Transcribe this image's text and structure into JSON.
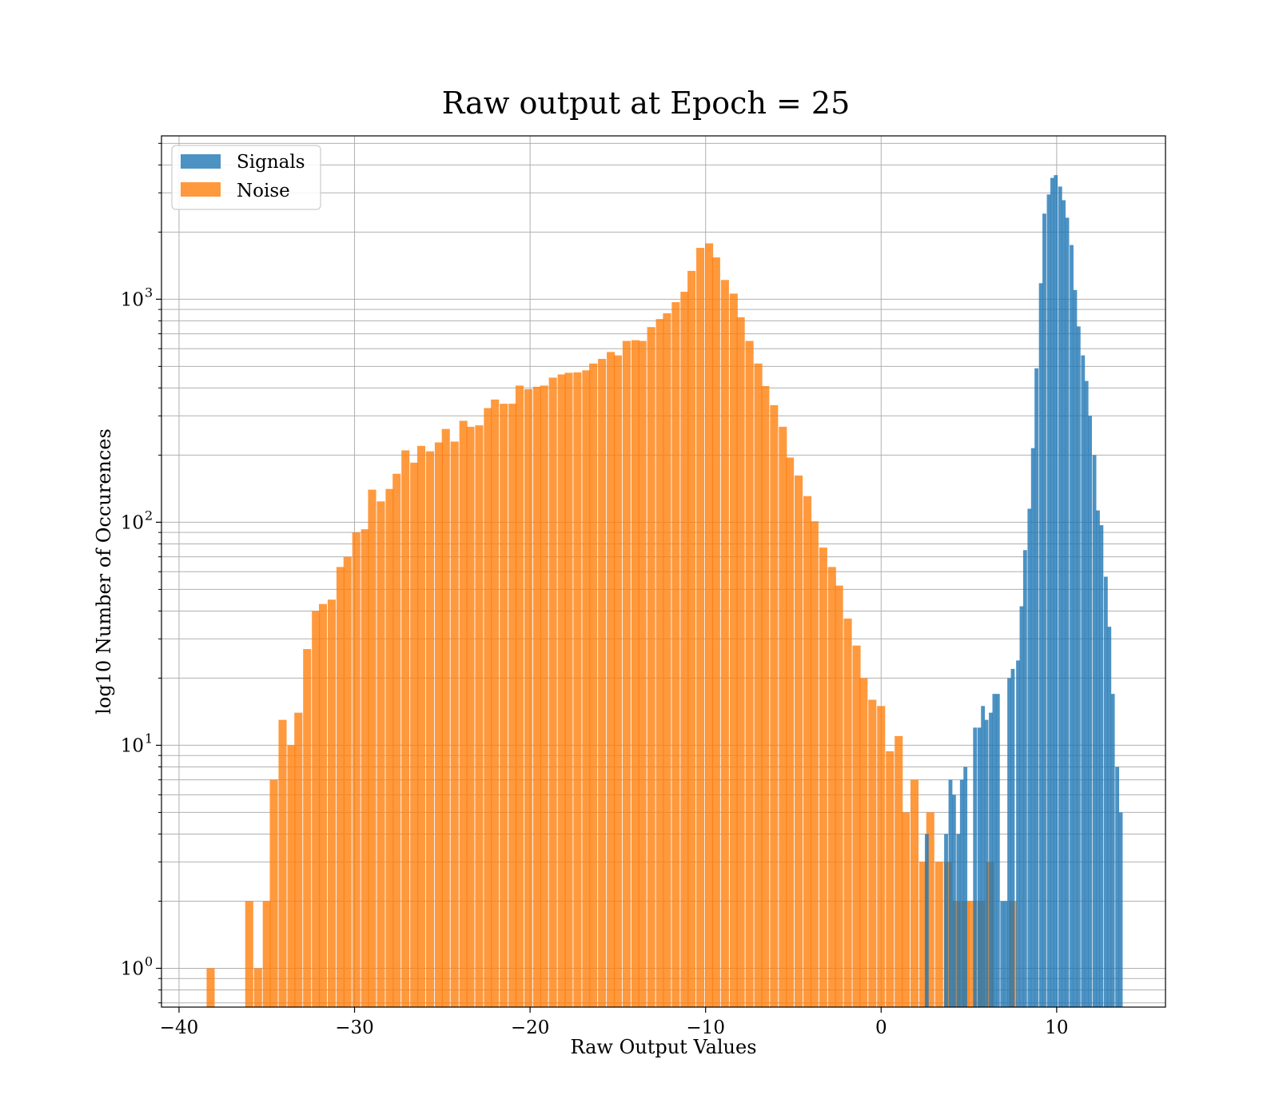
{
  "chart_data": {
    "type": "bar",
    "title": "Raw output at Epoch = 25",
    "xlabel": "Raw Output Values",
    "ylabel": "log10 Number of Occurences",
    "xlim": [
      -41,
      16.2
    ],
    "ylim": [
      0.67,
      5400
    ],
    "yscale": "log",
    "grid": true,
    "legend_position": "upper-left",
    "xticks": [
      -40,
      -30,
      -20,
      -10,
      0,
      10
    ],
    "xtick_labels": [
      "−40",
      "−30",
      "−20",
      "−10",
      "0",
      "10"
    ],
    "yticks": [
      1,
      10,
      100,
      1000
    ],
    "ytick_labels": [
      "10",
      "10",
      "10",
      "10"
    ],
    "ytick_exponents": [
      "0",
      "1",
      "2",
      "3"
    ],
    "series": [
      {
        "name": "Noise",
        "color": "#ff7f0e",
        "bin_width": 0.46,
        "bins": [
          [
            -38.2,
            1
          ],
          [
            -36.0,
            2
          ],
          [
            -35.5,
            1
          ],
          [
            -35.0,
            2
          ],
          [
            -34.6,
            7
          ],
          [
            -34.1,
            13
          ],
          [
            -33.6,
            10
          ],
          [
            -33.2,
            14
          ],
          [
            -32.7,
            27
          ],
          [
            -32.2,
            40
          ],
          [
            -31.8,
            43
          ],
          [
            -31.3,
            45
          ],
          [
            -30.8,
            63
          ],
          [
            -30.4,
            70
          ],
          [
            -29.9,
            90
          ],
          [
            -29.4,
            93
          ],
          [
            -29.0,
            140
          ],
          [
            -28.5,
            124
          ],
          [
            -28.0,
            141
          ],
          [
            -27.6,
            165
          ],
          [
            -27.1,
            210
          ],
          [
            -26.6,
            185
          ],
          [
            -26.2,
            220
          ],
          [
            -25.7,
            208
          ],
          [
            -25.2,
            228
          ],
          [
            -24.8,
            262
          ],
          [
            -24.3,
            230
          ],
          [
            -23.8,
            285
          ],
          [
            -23.4,
            268
          ],
          [
            -22.9,
            272
          ],
          [
            -22.4,
            325
          ],
          [
            -22.0,
            355
          ],
          [
            -21.5,
            340
          ],
          [
            -21.0,
            340
          ],
          [
            -20.6,
            410
          ],
          [
            -20.1,
            395
          ],
          [
            -19.6,
            405
          ],
          [
            -19.2,
            410
          ],
          [
            -18.7,
            445
          ],
          [
            -18.2,
            460
          ],
          [
            -17.8,
            468
          ],
          [
            -17.3,
            470
          ],
          [
            -16.8,
            480
          ],
          [
            -16.4,
            515
          ],
          [
            -15.9,
            540
          ],
          [
            -15.4,
            580
          ],
          [
            -15.0,
            560
          ],
          [
            -14.5,
            650
          ],
          [
            -14.0,
            655
          ],
          [
            -13.6,
            650
          ],
          [
            -13.1,
            750
          ],
          [
            -12.6,
            815
          ],
          [
            -12.2,
            865
          ],
          [
            -11.7,
            970
          ],
          [
            -11.2,
            1080
          ],
          [
            -10.8,
            1340
          ],
          [
            -10.3,
            1700
          ],
          [
            -9.8,
            1780
          ],
          [
            -9.4,
            1540
          ],
          [
            -8.9,
            1220
          ],
          [
            -8.4,
            1060
          ],
          [
            -8.0,
            830
          ],
          [
            -7.5,
            650
          ],
          [
            -7.0,
            515
          ],
          [
            -6.6,
            408
          ],
          [
            -6.1,
            335
          ],
          [
            -5.6,
            268
          ],
          [
            -5.2,
            195
          ],
          [
            -4.7,
            162
          ],
          [
            -4.2,
            131
          ],
          [
            -3.8,
            101
          ],
          [
            -3.3,
            77
          ],
          [
            -2.8,
            63
          ],
          [
            -2.4,
            52
          ],
          [
            -1.9,
            37
          ],
          [
            -1.4,
            28
          ],
          [
            -1.0,
            20
          ],
          [
            -0.5,
            16
          ],
          [
            0.0,
            15
          ],
          [
            0.5,
            9.4
          ],
          [
            1.0,
            11
          ],
          [
            1.4,
            5
          ],
          [
            1.9,
            7
          ],
          [
            2.4,
            3
          ],
          [
            2.8,
            5
          ],
          [
            3.3,
            3
          ],
          [
            3.8,
            3
          ],
          [
            4.3,
            2
          ],
          [
            4.8,
            2
          ],
          [
            5.2,
            2
          ],
          [
            5.7,
            2
          ],
          [
            6.2,
            3
          ],
          [
            7.5,
            2
          ]
        ]
      },
      {
        "name": "Signals",
        "color": "#1f77b4",
        "bin_width": 0.22,
        "bins": [
          [
            2.6,
            4
          ],
          [
            3.7,
            4
          ],
          [
            3.95,
            7
          ],
          [
            4.15,
            6
          ],
          [
            4.4,
            4
          ],
          [
            4.6,
            7
          ],
          [
            4.8,
            8
          ],
          [
            5.35,
            12
          ],
          [
            5.6,
            12
          ],
          [
            5.8,
            15
          ],
          [
            6.0,
            13
          ],
          [
            6.25,
            14
          ],
          [
            6.45,
            17
          ],
          [
            6.65,
            17
          ],
          [
            6.9,
            2
          ],
          [
            7.1,
            2
          ],
          [
            7.3,
            20
          ],
          [
            7.5,
            22
          ],
          [
            7.8,
            24
          ],
          [
            8.0,
            42
          ],
          [
            8.2,
            75
          ],
          [
            8.45,
            115
          ],
          [
            8.65,
            215
          ],
          [
            8.85,
            490
          ],
          [
            9.1,
            1180
          ],
          [
            9.3,
            2420
          ],
          [
            9.55,
            2950
          ],
          [
            9.75,
            3500
          ],
          [
            9.95,
            3600
          ],
          [
            10.2,
            3200
          ],
          [
            10.4,
            2780
          ],
          [
            10.6,
            2320
          ],
          [
            10.85,
            1750
          ],
          [
            11.05,
            1100
          ],
          [
            11.25,
            755
          ],
          [
            11.5,
            560
          ],
          [
            11.7,
            430
          ],
          [
            11.9,
            300
          ],
          [
            12.15,
            200
          ],
          [
            12.35,
            113
          ],
          [
            12.55,
            97
          ],
          [
            12.8,
            57
          ],
          [
            13.0,
            34
          ],
          [
            13.2,
            17
          ],
          [
            13.45,
            8
          ],
          [
            13.65,
            5
          ]
        ]
      }
    ],
    "legend": [
      {
        "label": "Signals",
        "color": "#1f77b4"
      },
      {
        "label": "Noise",
        "color": "#ff7f0e"
      }
    ]
  }
}
